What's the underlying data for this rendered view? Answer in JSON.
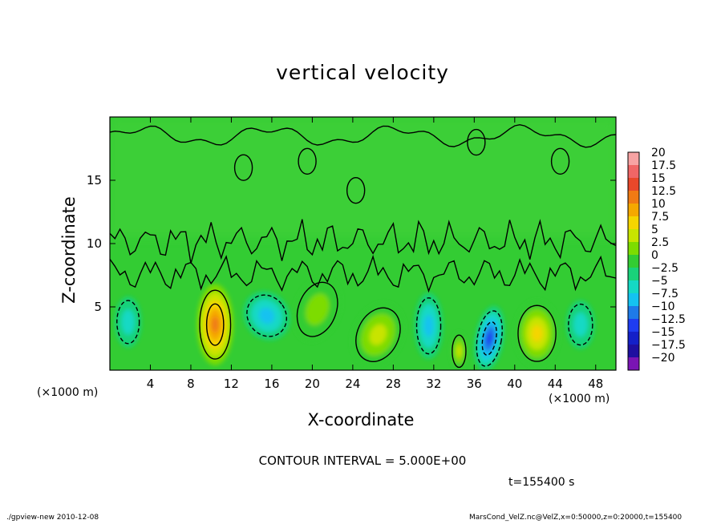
{
  "chart_data": {
    "type": "heatmap",
    "title": "vertical velocity",
    "xlabel": "X-coordinate",
    "ylabel": "Z-coordinate",
    "x_unit": "(×1000 m)",
    "xlim": [
      0,
      50
    ],
    "ylim": [
      0,
      20
    ],
    "x_ticks": [
      "4",
      "8",
      "12",
      "16",
      "20",
      "24",
      "28",
      "32",
      "36",
      "40",
      "44",
      "48"
    ],
    "x_tick_values": [
      4,
      8,
      12,
      16,
      20,
      24,
      28,
      32,
      36,
      40,
      44,
      48
    ],
    "y_ticks": [
      "5",
      "10",
      "15"
    ],
    "y_tick_values": [
      5,
      10,
      15
    ],
    "colorbar": {
      "levels": [
        "20",
        "17.5",
        "15",
        "12.5",
        "10",
        "7.5",
        "5",
        "2.5",
        "0",
        "−2.5",
        "−5",
        "−7.5",
        "−10",
        "−12.5",
        "−15",
        "−17.5",
        "−20"
      ],
      "colors": [
        "#f7a3a3",
        "#f06666",
        "#e8482a",
        "#f07a14",
        "#f5a800",
        "#f5d500",
        "#c8e400",
        "#7ddc00",
        "#33cc33",
        "#19d27a",
        "#14d9c4",
        "#14c2f0",
        "#1e7ae8",
        "#1e3cf0",
        "#1420c8",
        "#1e0fa0",
        "#7a14b4"
      ]
    },
    "features": [
      {
        "kind": "updraft",
        "x": 10.4,
        "z": 3.6,
        "peak": 12.5
      },
      {
        "kind": "downdraft",
        "x": 15.5,
        "z": 4.3,
        "peak": -6
      },
      {
        "kind": "downdraft",
        "x": 1.8,
        "z": 3.8,
        "peak": -5
      },
      {
        "kind": "updraft",
        "x": 20.5,
        "z": 4.8,
        "peak": 3
      },
      {
        "kind": "updraft",
        "x": 26.5,
        "z": 2.8,
        "peak": 6
      },
      {
        "kind": "downdraft",
        "x": 31.5,
        "z": 3.5,
        "peak": -6
      },
      {
        "kind": "updraft",
        "x": 34.5,
        "z": 1.5,
        "peak": 6
      },
      {
        "kind": "downdraft",
        "x": 37.5,
        "z": 2.5,
        "peak": -12
      },
      {
        "kind": "updraft",
        "x": 42.2,
        "z": 2.9,
        "peak": 8
      },
      {
        "kind": "downdraft",
        "x": 46.5,
        "z": 3.6,
        "peak": -4
      }
    ]
  },
  "contour_text": "CONTOUR INTERVAL = 5.000E+00",
  "time_text": "t=155400 s",
  "footer_left": "./gpview-new  2010-12-08",
  "footer_right": "MarsCond_VelZ.nc@VelZ,x=0:50000,z=0:20000,t=155400"
}
